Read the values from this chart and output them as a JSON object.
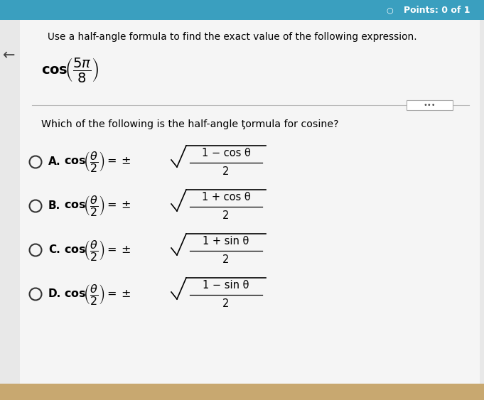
{
  "bg_color": "#e8e8e8",
  "header_color": "#3a9fbf",
  "white_bg": "#f5f5f5",
  "text_color": "#1a1a1a",
  "points_text": "Points: 0 of 1",
  "instruction": "Use a half-angle formula to find the exact value of the following expression.",
  "question": "Which of the following is the half-angle ƫormula for cosine?",
  "option_labels": [
    "A.",
    "B.",
    "C.",
    "D."
  ],
  "option_numerators": [
    "1 − cos θ",
    "1 + cos θ",
    "1 + sin θ",
    "1 − sin θ"
  ],
  "tan_strip_color": "#c8a870",
  "separator_color": "#bbbbbb",
  "circle_color": "#333333"
}
